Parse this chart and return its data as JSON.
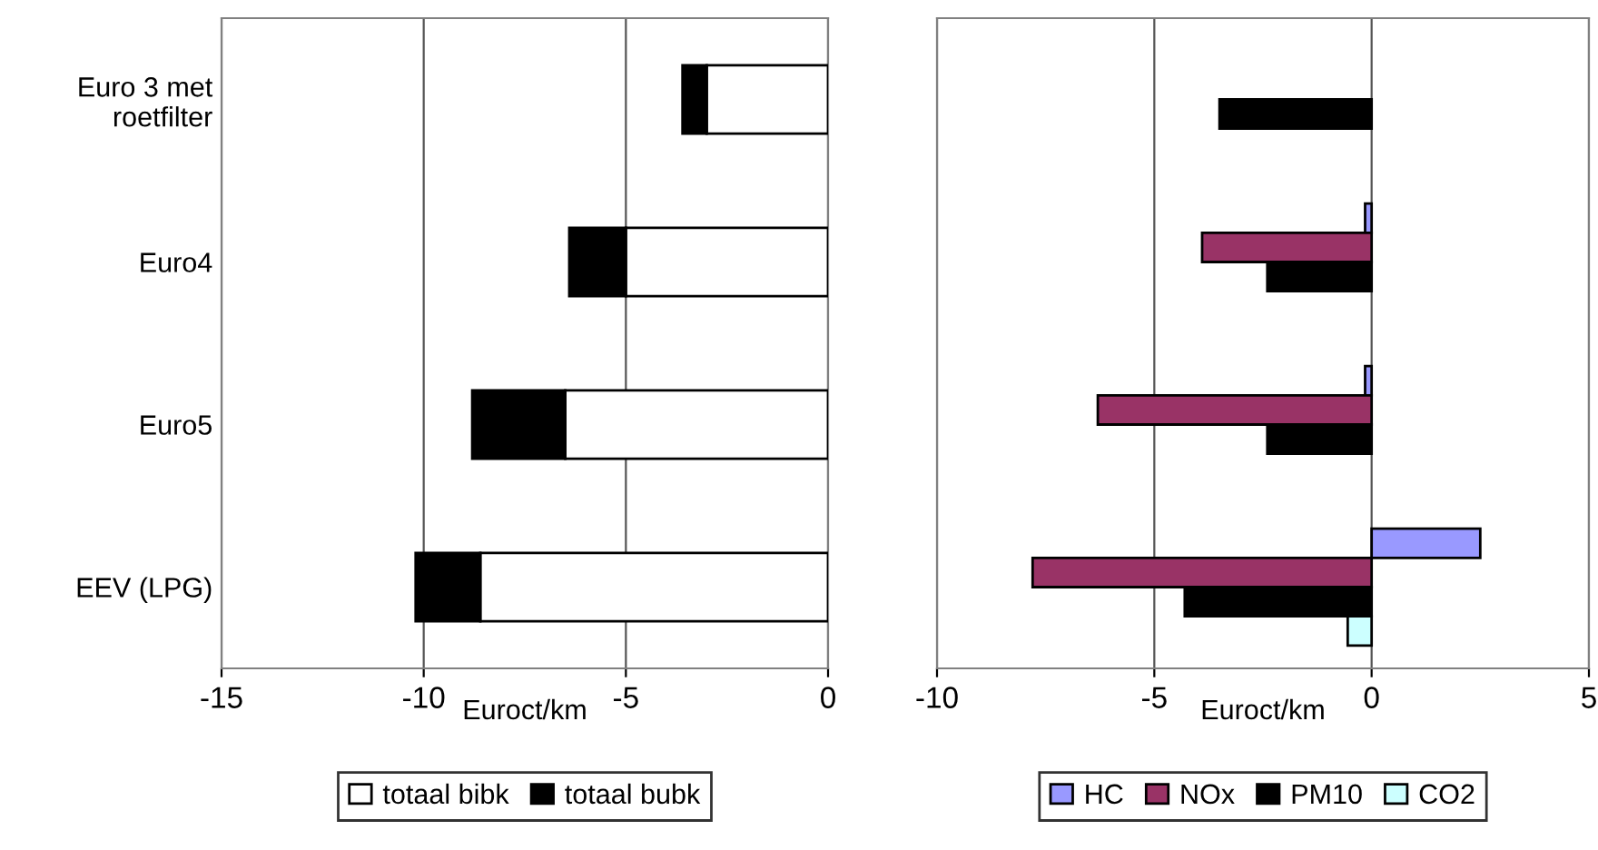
{
  "chart_data": [
    {
      "type": "bar",
      "orientation": "horizontal",
      "stacked": true,
      "xlabel": "Euroct/km",
      "categories": [
        "Euro 3 met\nroetfilter",
        "Euro4",
        "Euro5",
        "EEV (LPG)"
      ],
      "series": [
        {
          "name": "totaal bibk",
          "color": "#ffffff",
          "values": [
            -3.0,
            -5.0,
            -6.5,
            -8.6
          ]
        },
        {
          "name": "totaal bubk",
          "color": "#000000",
          "values": [
            -0.6,
            -1.4,
            -2.3,
            -1.6
          ]
        }
      ],
      "xlim": [
        -15,
        0
      ],
      "xticks": [
        -15,
        -10,
        -5,
        0
      ],
      "grid": "x",
      "legend": "bottom"
    },
    {
      "type": "bar",
      "orientation": "horizontal",
      "xlabel": "Euroct/km",
      "categories": [
        null,
        null,
        null,
        null
      ],
      "series": [
        {
          "name": "HC",
          "color": "#9999ff",
          "values": [
            null,
            -0.15,
            -0.15,
            2.5
          ]
        },
        {
          "name": "NOx",
          "color": "#993366",
          "values": [
            null,
            -3.9,
            -6.3,
            -7.8
          ]
        },
        {
          "name": "PM10",
          "color": "#000000",
          "values": [
            -3.5,
            -2.4,
            -2.4,
            -4.3
          ]
        },
        {
          "name": "CO2",
          "color": "#ccffff",
          "values": [
            null,
            null,
            null,
            -0.55
          ]
        }
      ],
      "xlim": [
        -10,
        5
      ],
      "xticks": [
        -10,
        -5,
        0,
        5
      ],
      "grid": "x",
      "legend": "bottom"
    }
  ]
}
